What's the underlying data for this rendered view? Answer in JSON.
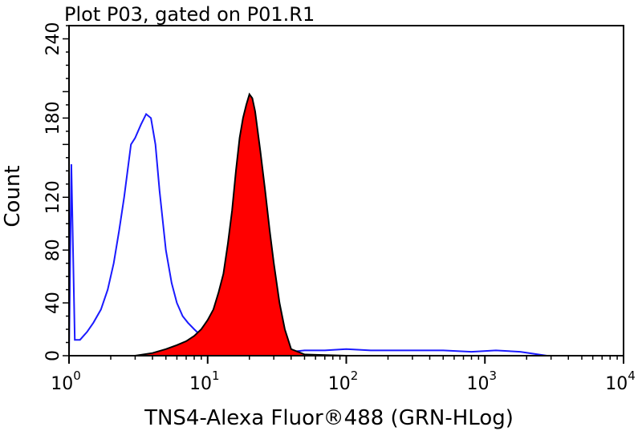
{
  "chart_data": {
    "type": "area",
    "title": "Plot P03, gated on P01.R1",
    "xlabel": "TNS4-Alexa Fluor®488 (GRN-HLog)",
    "ylabel": "Count",
    "x_scale": "log",
    "xlim": [
      1,
      10000
    ],
    "ylim": [
      0,
      250
    ],
    "x_ticks": [
      {
        "base": "10",
        "exp": "0"
      },
      {
        "base": "10",
        "exp": "1"
      },
      {
        "base": "10",
        "exp": "2"
      },
      {
        "base": "10",
        "exp": "3"
      },
      {
        "base": "10",
        "exp": "4"
      }
    ],
    "y_ticks": [
      "0",
      "40",
      "80",
      "120",
      "180",
      "240"
    ],
    "y_tick_values": [
      0,
      40,
      80,
      120,
      180,
      240
    ],
    "grid": false,
    "legend": "none",
    "series": [
      {
        "style": "outline",
        "color": "#1a1aff",
        "x": [
          1.0,
          1.04,
          1.1,
          1.2,
          1.35,
          1.5,
          1.7,
          1.9,
          2.1,
          2.3,
          2.5,
          2.8,
          3.0,
          3.3,
          3.6,
          3.9,
          4.2,
          4.5,
          5.0,
          5.5,
          6.0,
          6.6,
          7.2,
          8.0,
          9.0,
          10.0,
          11.0,
          13.0,
          16.0,
          20.0,
          30.0,
          40.0,
          50.0,
          70.0,
          100.0,
          150.0,
          200.0,
          300.0,
          500.0,
          800.0,
          1200.0,
          1800.0,
          2800.0
        ],
        "y": [
          0,
          145,
          12,
          12,
          18,
          25,
          35,
          50,
          70,
          95,
          120,
          160,
          165,
          175,
          183,
          180,
          160,
          125,
          80,
          55,
          40,
          30,
          25,
          20,
          15,
          10,
          7,
          5,
          4,
          4,
          4,
          3,
          4,
          4,
          5,
          4,
          4,
          4,
          4,
          3,
          4,
          3,
          0
        ]
      },
      {
        "style": "filled",
        "color": "#ff0000",
        "x": [
          1.0,
          2.0,
          3.0,
          4.0,
          5.0,
          6.0,
          7.0,
          8.0,
          9.0,
          10.0,
          11.0,
          12.0,
          13.0,
          14.0,
          15.0,
          16.0,
          17.0,
          18.0,
          19.0,
          20.0,
          21.0,
          22.0,
          24.0,
          26.0,
          28.0,
          30.0,
          33.0,
          36.0,
          40.0,
          50.0,
          100.0,
          1000.0,
          10000.0
        ],
        "y": [
          0,
          0,
          0,
          2,
          5,
          8,
          11,
          15,
          20,
          27,
          35,
          48,
          62,
          85,
          110,
          140,
          165,
          180,
          190,
          198,
          195,
          185,
          155,
          125,
          95,
          70,
          40,
          20,
          5,
          1,
          0,
          0,
          0
        ]
      }
    ]
  }
}
